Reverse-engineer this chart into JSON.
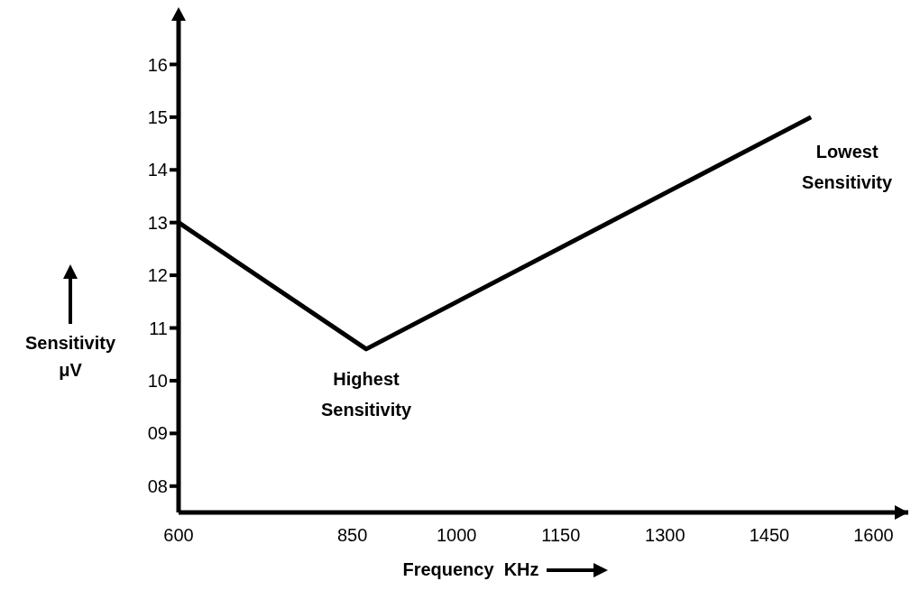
{
  "chart_data": {
    "type": "line",
    "xlabel": "Frequency  KHz",
    "ylabel": "Sensitivity μV",
    "x": [
      600,
      870,
      1510
    ],
    "series": [
      {
        "color": "#000000",
        "values": [
          13,
          10.6,
          15
        ]
      }
    ],
    "xlim": [
      600,
      1650
    ],
    "xticks": [
      600,
      850,
      1000,
      1150,
      1300,
      1450,
      1600
    ],
    "ylim": [
      7.5,
      17
    ],
    "yticks": [
      {
        "value": 8,
        "label": "08"
      },
      {
        "value": 9,
        "label": "09"
      },
      10,
      11,
      12,
      13,
      14,
      15,
      16
    ],
    "grid": false,
    "legend": false,
    "marker": "none",
    "line_style": "solid",
    "annotations": [
      {
        "text": "Highest Sensitivity",
        "x": 870,
        "y": 10.6
      },
      {
        "text": "Lowest Sensitivity",
        "x": 1510,
        "y": 15
      }
    ]
  }
}
